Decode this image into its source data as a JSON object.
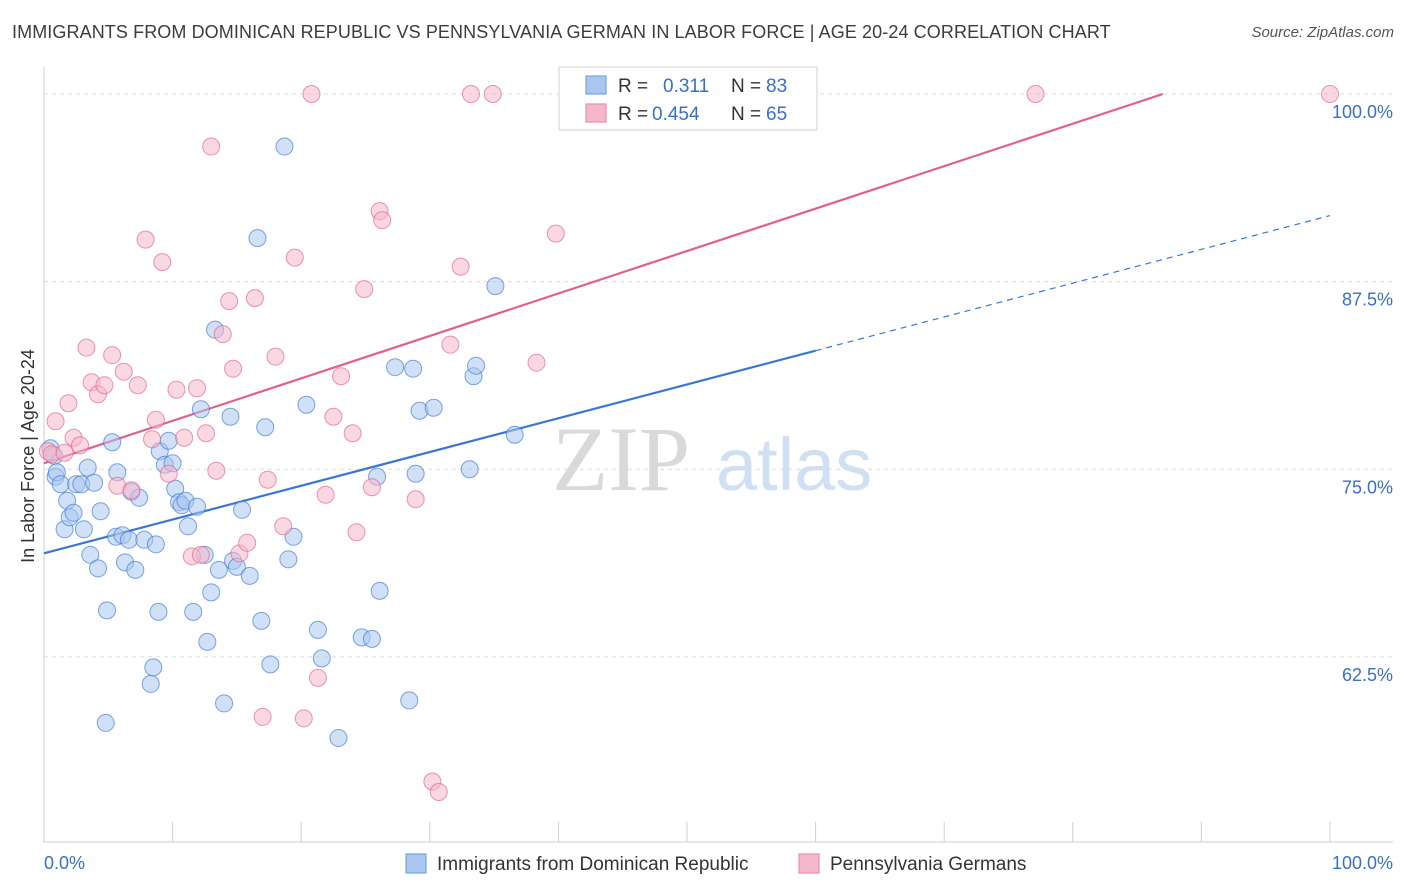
{
  "title": "IMMIGRANTS FROM DOMINICAN REPUBLIC VS PENNSYLVANIA GERMAN IN LABOR FORCE | AGE 20-24 CORRELATION CHART",
  "source": "Source: ZipAtlas.com",
  "watermark": {
    "zip": "ZIP",
    "atlas": "atlas"
  },
  "colors": {
    "blue": "#3a77d0",
    "pink": "#e0608e",
    "blue_fill": "#a9c7ee",
    "pink_fill": "#f5b8cb",
    "tick_text": "#3a6fc4"
  },
  "legend": {
    "r_label": "R =",
    "n_label": "N =",
    "rows": [
      {
        "series": "blue",
        "r": "0.311",
        "n": "83"
      },
      {
        "series": "pink",
        "r": "0.454",
        "n": "65"
      }
    ]
  },
  "chart_data": {
    "type": "scatter",
    "ylabel": "In Labor Force | Age 20-24",
    "xlim": [
      0,
      100
    ],
    "ylim": [
      51.5,
      101
    ],
    "x_tick_labels": [
      "0.0%",
      "100.0%"
    ],
    "y_ticks": [
      {
        "value": 62.5,
        "label": "62.5%"
      },
      {
        "value": 75.0,
        "label": "75.0%"
      },
      {
        "value": 87.5,
        "label": "87.5%"
      },
      {
        "value": 100.0,
        "label": "100.0%"
      }
    ],
    "grid": "horizontal dashed",
    "legend_position": "top-center",
    "series": [
      {
        "name": "Immigrants from Dominican Republic",
        "color": "blue",
        "trend": {
          "x0": 0,
          "y0": 69.4,
          "x1": 100,
          "y1": 91.9,
          "solid_until_x": 60
        },
        "points": [
          [
            0.5,
            76.4
          ],
          [
            0.8,
            75.9
          ],
          [
            0.9,
            74.5
          ],
          [
            1.0,
            74.8
          ],
          [
            1.3,
            74.0
          ],
          [
            1.6,
            71.0
          ],
          [
            1.8,
            72.9
          ],
          [
            2.0,
            71.8
          ],
          [
            2.3,
            72.1
          ],
          [
            2.5,
            74.0
          ],
          [
            2.9,
            74.0
          ],
          [
            3.1,
            71.0
          ],
          [
            3.4,
            75.1
          ],
          [
            3.6,
            69.3
          ],
          [
            3.9,
            74.1
          ],
          [
            4.2,
            68.4
          ],
          [
            4.4,
            72.2
          ],
          [
            4.9,
            65.6
          ],
          [
            4.8,
            58.1
          ],
          [
            5.3,
            76.8
          ],
          [
            5.6,
            70.5
          ],
          [
            5.7,
            74.8
          ],
          [
            6.1,
            70.6
          ],
          [
            6.3,
            68.8
          ],
          [
            6.6,
            70.3
          ],
          [
            6.8,
            73.5
          ],
          [
            7.1,
            68.3
          ],
          [
            7.4,
            73.1
          ],
          [
            7.8,
            70.3
          ],
          [
            8.3,
            60.7
          ],
          [
            8.5,
            61.8
          ],
          [
            8.7,
            70.0
          ],
          [
            8.9,
            65.5
          ],
          [
            9.0,
            76.2
          ],
          [
            9.4,
            75.3
          ],
          [
            9.7,
            76.9
          ],
          [
            10.0,
            75.4
          ],
          [
            10.2,
            73.7
          ],
          [
            10.5,
            72.8
          ],
          [
            10.7,
            72.6
          ],
          [
            11.0,
            72.9
          ],
          [
            11.2,
            71.2
          ],
          [
            11.6,
            65.5
          ],
          [
            11.9,
            72.5
          ],
          [
            12.2,
            79.0
          ],
          [
            12.5,
            69.3
          ],
          [
            12.7,
            63.5
          ],
          [
            13.0,
            66.8
          ],
          [
            13.3,
            84.3
          ],
          [
            13.6,
            68.3
          ],
          [
            14.0,
            59.4
          ],
          [
            14.5,
            78.5
          ],
          [
            14.7,
            68.9
          ],
          [
            15.0,
            68.5
          ],
          [
            15.4,
            72.3
          ],
          [
            16.0,
            67.9
          ],
          [
            16.6,
            90.4
          ],
          [
            16.9,
            64.9
          ],
          [
            17.2,
            77.8
          ],
          [
            17.6,
            62.0
          ],
          [
            18.7,
            96.5
          ],
          [
            19.0,
            69.0
          ],
          [
            19.4,
            70.5
          ],
          [
            20.4,
            79.3
          ],
          [
            21.3,
            64.3
          ],
          [
            21.6,
            62.4
          ],
          [
            22.9,
            57.1
          ],
          [
            24.7,
            63.8
          ],
          [
            25.5,
            63.7
          ],
          [
            25.9,
            74.5
          ],
          [
            26.1,
            66.9
          ],
          [
            27.3,
            81.8
          ],
          [
            28.4,
            59.6
          ],
          [
            28.7,
            81.7
          ],
          [
            28.9,
            74.7
          ],
          [
            29.2,
            78.9
          ],
          [
            30.3,
            79.1
          ],
          [
            33.1,
            75.0
          ],
          [
            33.4,
            81.2
          ],
          [
            33.6,
            81.9
          ],
          [
            35.1,
            87.2
          ],
          [
            36.6,
            77.3
          ],
          [
            47.6,
            100.0
          ]
        ]
      },
      {
        "name": "Pennsylvania Germans",
        "color": "pink",
        "trend": {
          "x0": 0,
          "y0": 75.4,
          "x1": 87,
          "y1": 100.0,
          "solid_until_x": 87
        },
        "points": [
          [
            0.3,
            76.2
          ],
          [
            0.6,
            76.0
          ],
          [
            0.9,
            78.2
          ],
          [
            1.6,
            76.1
          ],
          [
            1.9,
            79.4
          ],
          [
            2.3,
            77.1
          ],
          [
            2.8,
            76.6
          ],
          [
            3.3,
            83.1
          ],
          [
            3.7,
            80.8
          ],
          [
            4.2,
            80.0
          ],
          [
            4.7,
            80.6
          ],
          [
            5.3,
            82.6
          ],
          [
            5.7,
            73.9
          ],
          [
            6.2,
            81.5
          ],
          [
            6.8,
            73.6
          ],
          [
            7.3,
            80.6
          ],
          [
            7.9,
            90.3
          ],
          [
            8.4,
            77.0
          ],
          [
            8.7,
            78.3
          ],
          [
            9.2,
            88.8
          ],
          [
            9.7,
            74.7
          ],
          [
            10.3,
            80.3
          ],
          [
            10.9,
            77.1
          ],
          [
            11.5,
            69.2
          ],
          [
            11.9,
            80.4
          ],
          [
            12.2,
            69.3
          ],
          [
            12.6,
            77.4
          ],
          [
            13.0,
            96.5
          ],
          [
            13.4,
            74.9
          ],
          [
            13.9,
            84.0
          ],
          [
            14.4,
            86.2
          ],
          [
            14.7,
            81.7
          ],
          [
            15.2,
            69.4
          ],
          [
            15.8,
            70.1
          ],
          [
            16.4,
            86.4
          ],
          [
            17.0,
            58.5
          ],
          [
            17.4,
            74.3
          ],
          [
            18.0,
            82.5
          ],
          [
            18.6,
            71.2
          ],
          [
            19.5,
            89.1
          ],
          [
            20.2,
            58.4
          ],
          [
            20.8,
            100.0
          ],
          [
            21.3,
            61.1
          ],
          [
            21.9,
            73.3
          ],
          [
            22.5,
            78.5
          ],
          [
            23.1,
            81.2
          ],
          [
            24.0,
            77.4
          ],
          [
            24.3,
            70.8
          ],
          [
            24.9,
            87.0
          ],
          [
            25.5,
            73.8
          ],
          [
            26.1,
            92.2
          ],
          [
            26.3,
            91.6
          ],
          [
            28.9,
            73.0
          ],
          [
            30.2,
            54.2
          ],
          [
            30.7,
            53.5
          ],
          [
            31.6,
            83.3
          ],
          [
            32.4,
            88.5
          ],
          [
            33.2,
            100.0
          ],
          [
            34.9,
            100.0
          ],
          [
            38.3,
            82.1
          ],
          [
            39.8,
            90.7
          ],
          [
            51.8,
            100.0
          ],
          [
            58.3,
            100.0
          ],
          [
            77.1,
            100.0
          ],
          [
            100.0,
            100.0
          ]
        ]
      }
    ]
  }
}
